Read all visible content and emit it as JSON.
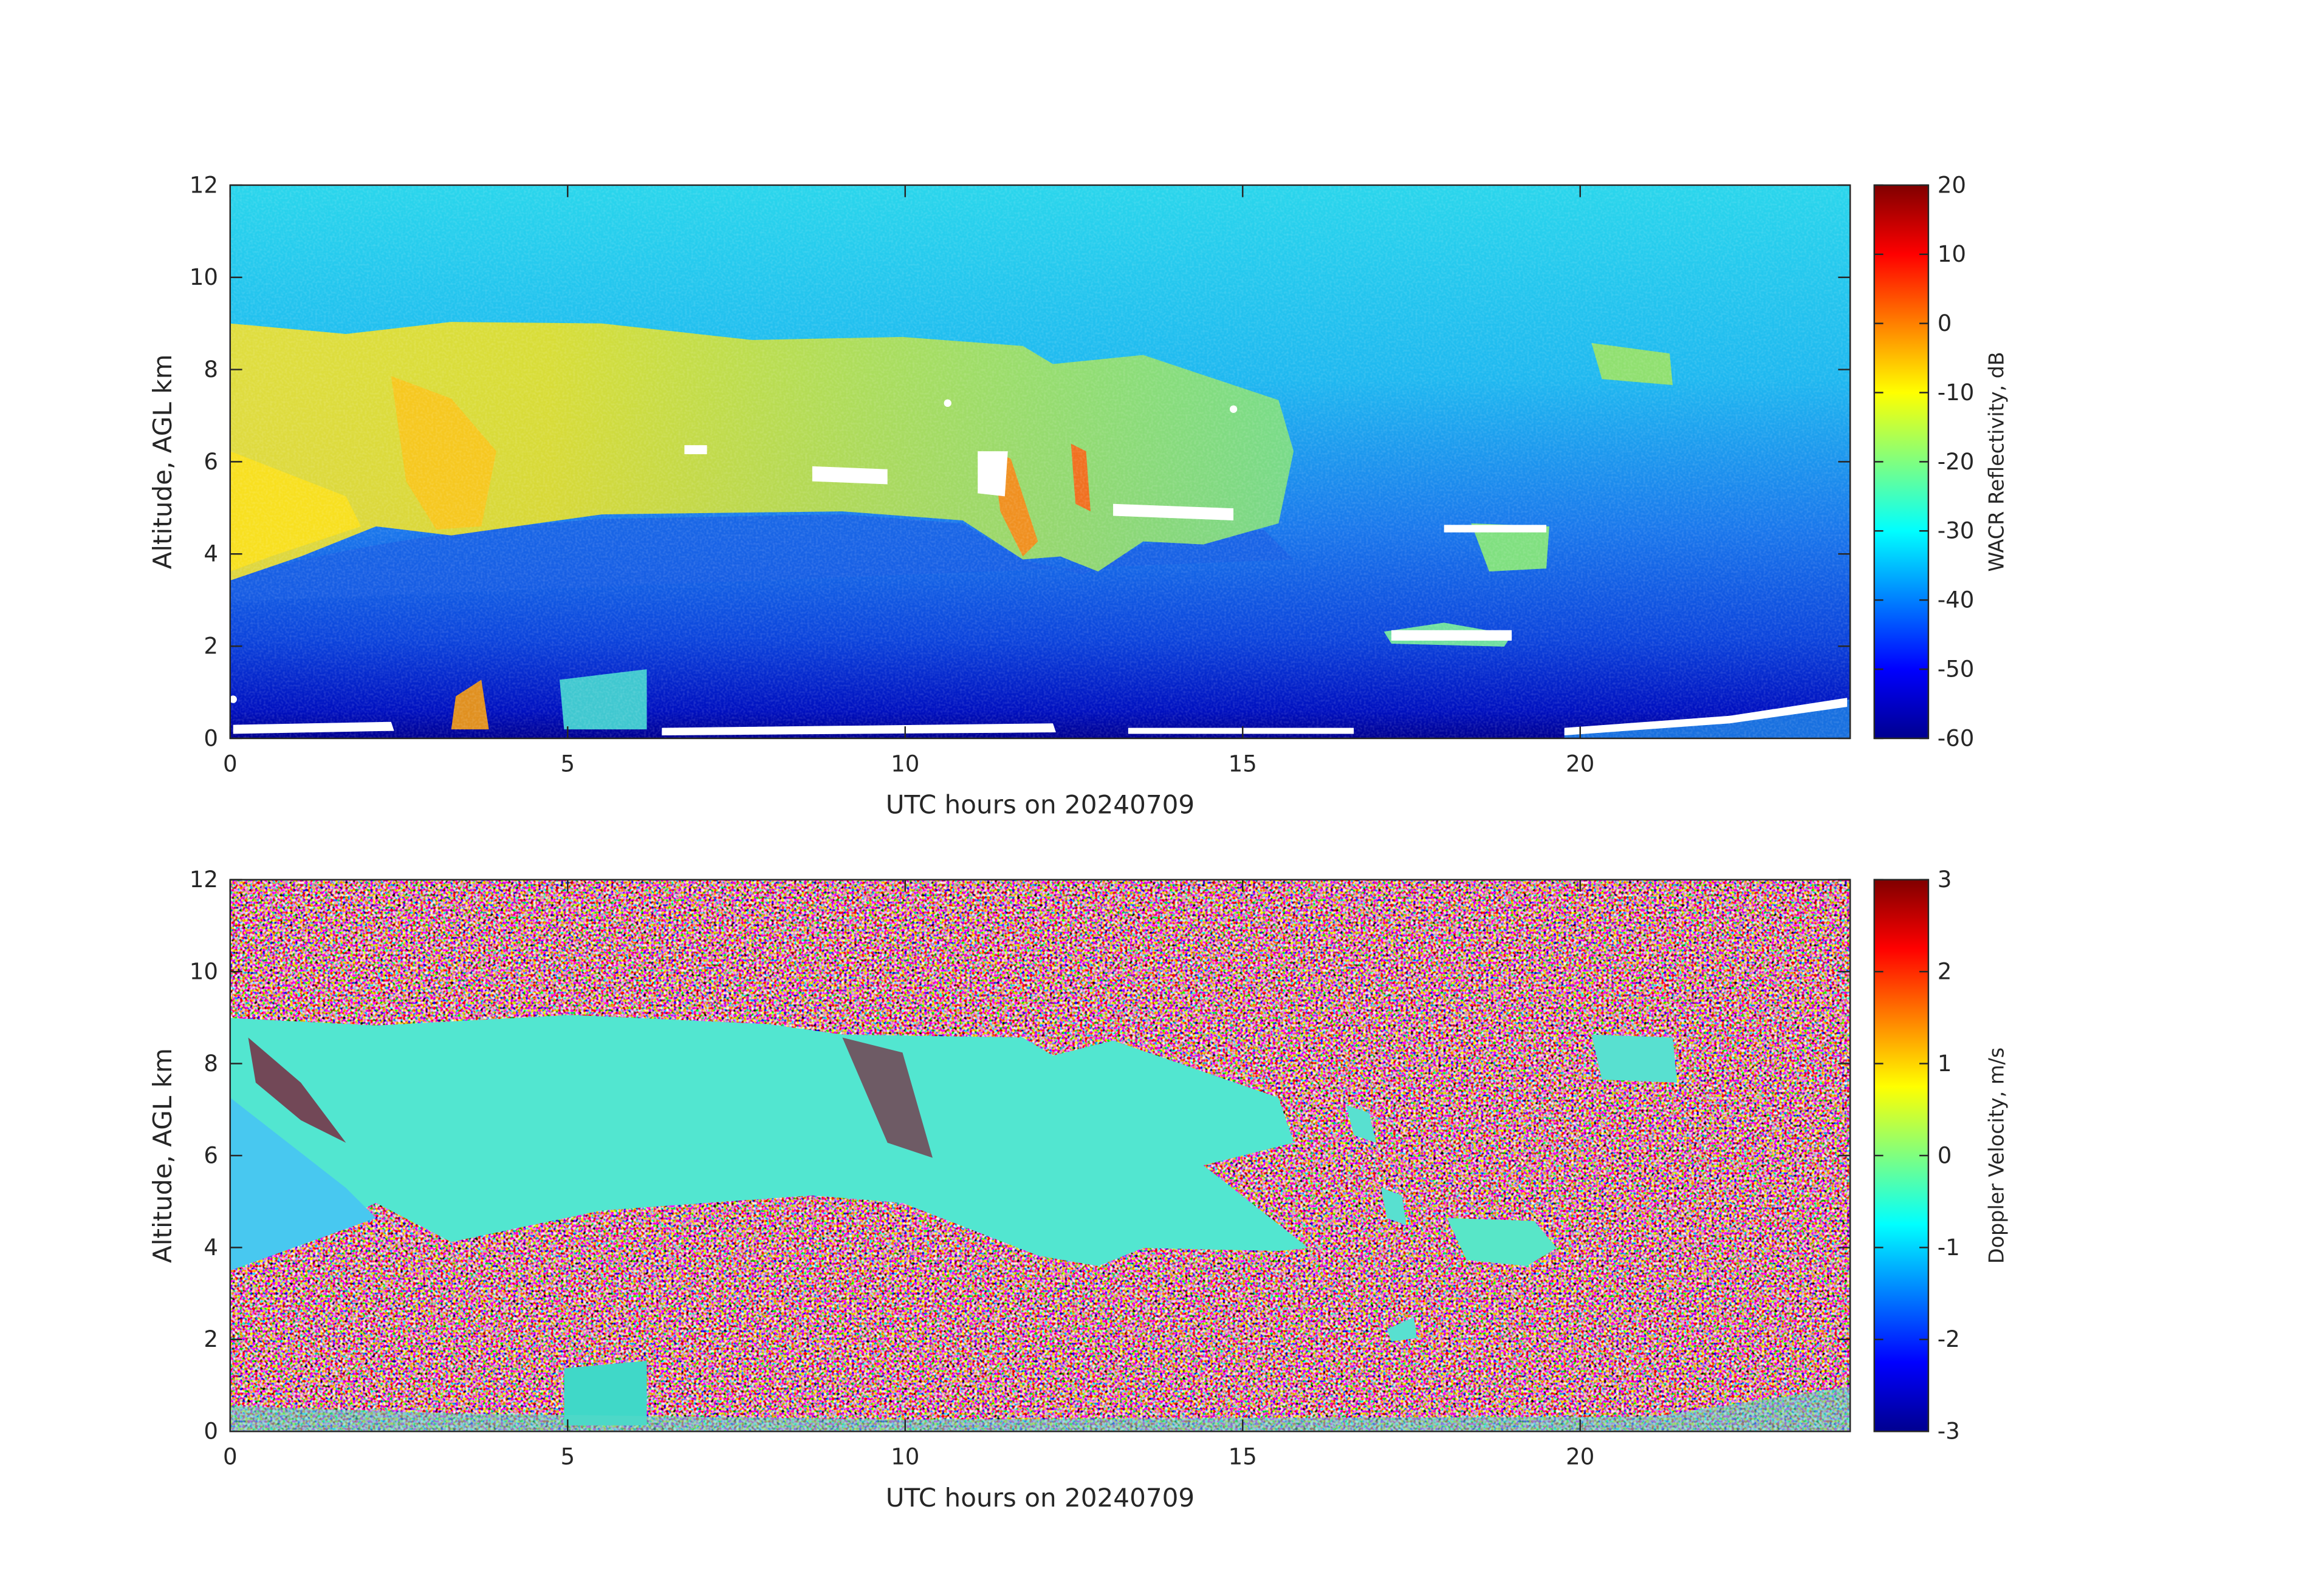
{
  "chart_data": [
    {
      "type": "heatmap",
      "xlabel": "UTC hours on 20240709",
      "ylabel": "Altitude, AGL km",
      "xlim": [
        0,
        24
      ],
      "xticks": [
        0,
        5,
        10,
        15,
        20
      ],
      "ylim": [
        0,
        12
      ],
      "yticks": [
        0,
        2,
        4,
        6,
        8,
        10,
        12
      ],
      "colormap": "jet",
      "colorbar": {
        "label": "WACR Reflectivity, dB",
        "lim": [
          -60,
          20
        ],
        "ticks": [
          -60,
          -50,
          -40,
          -30,
          -20,
          -10,
          0,
          10,
          20
        ]
      }
    },
    {
      "type": "heatmap",
      "xlabel": "UTC hours on 20240709",
      "ylabel": "Altitude, AGL km",
      "xlim": [
        0,
        24
      ],
      "xticks": [
        0,
        5,
        10,
        15,
        20
      ],
      "ylim": [
        0,
        12
      ],
      "yticks": [
        0,
        2,
        4,
        6,
        8,
        10,
        12
      ],
      "colormap": "jet",
      "colorbar": {
        "label": "Doppler Velocity, m/s",
        "lim": [
          -3,
          3
        ],
        "ticks": [
          -3,
          -2,
          -1,
          0,
          1,
          2,
          3
        ]
      }
    }
  ]
}
